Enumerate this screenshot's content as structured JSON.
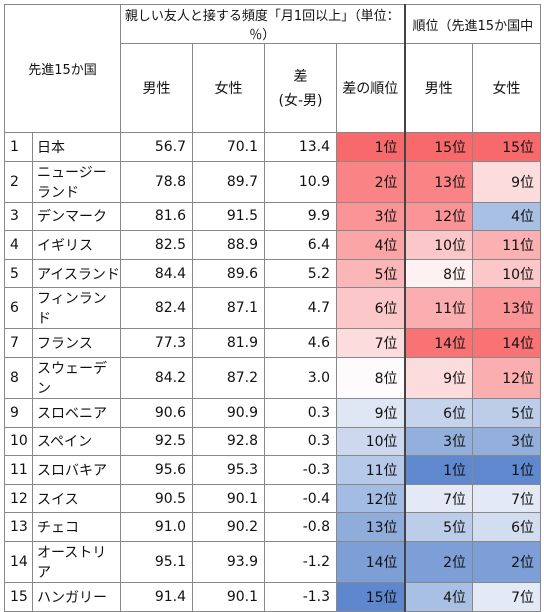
{
  "header": {
    "corner": "先進15か国",
    "group_freq": "親しい友人と接する頻度「月1回以上」（単位：％）",
    "group_rank": "順位（先進15か国中",
    "col_male": "男性",
    "col_female": "女性",
    "col_diff": "差",
    "col_diff_sub": "(女-男)",
    "col_diff_rank": "差の順位",
    "col_rank_male": "男性",
    "col_rank_female": "女性"
  },
  "rows": [
    {
      "no": "1",
      "country": "日本",
      "male": "56.7",
      "female": "70.1",
      "diff": "13.4",
      "diff_rank": "1位",
      "rank_m": "15位",
      "rank_f": "15位",
      "c_diff": "#f8696b",
      "c_m": "#f8696b",
      "c_f": "#f8696b"
    },
    {
      "no": "2",
      "country": "ニュージーランド",
      "male": "78.8",
      "female": "89.7",
      "diff": "10.9",
      "diff_rank": "2位",
      "rank_m": "13位",
      "rank_f": "9位",
      "c_diff": "#f98385",
      "c_m": "#f98385",
      "c_f": "#fddcdd"
    },
    {
      "no": "3",
      "country": "デンマーク",
      "male": "81.6",
      "female": "91.5",
      "diff": "9.9",
      "diff_rank": "3位",
      "rank_m": "12位",
      "rank_f": "4位",
      "c_diff": "#fa9496",
      "c_m": "#fa9496",
      "c_f": "#a8c0e4"
    },
    {
      "no": "4",
      "country": "イギリス",
      "male": "82.5",
      "female": "88.9",
      "diff": "6.4",
      "diff_rank": "4位",
      "rank_m": "10位",
      "rank_f": "11位",
      "c_diff": "#fba5a6",
      "c_m": "#fcc7c8",
      "c_f": "#fbb1b2"
    },
    {
      "no": "5",
      "country": "アイスランド",
      "male": "84.4",
      "female": "89.6",
      "diff": "5.2",
      "diff_rank": "5位",
      "rank_m": "8位",
      "rank_f": "10位",
      "c_diff": "#fbb6b7",
      "c_m": "#fdf1f1",
      "c_f": "#fcc7c8"
    },
    {
      "no": "6",
      "country": "フィンランド",
      "male": "82.4",
      "female": "87.1",
      "diff": "4.7",
      "diff_rank": "6位",
      "rank_m": "11位",
      "rank_f": "13位",
      "c_diff": "#fcc7c8",
      "c_m": "#fbaeaf",
      "c_f": "#fa9496"
    },
    {
      "no": "7",
      "country": "フランス",
      "male": "77.3",
      "female": "81.9",
      "diff": "4.6",
      "diff_rank": "7位",
      "rank_m": "14位",
      "rank_f": "14位",
      "c_diff": "#fddcdd",
      "c_m": "#f97375",
      "c_f": "#f97375"
    },
    {
      "no": "8",
      "country": "スウェーデン",
      "male": "84.2",
      "female": "87.2",
      "diff": "3.0",
      "diff_rank": "8位",
      "rank_m": "9位",
      "rank_f": "12位",
      "c_diff": "#fdfbfc",
      "c_m": "#fddcdd",
      "c_f": "#fbaeaf"
    },
    {
      "no": "9",
      "country": "スロベニア",
      "male": "90.6",
      "female": "90.9",
      "diff": "0.3",
      "diff_rank": "9位",
      "rank_m": "6位",
      "rank_f": "5位",
      "c_diff": "#dfe6f4",
      "c_m": "#c5d3ec",
      "c_f": "#bdcde9"
    },
    {
      "no": "10",
      "country": "スペイン",
      "male": "92.5",
      "female": "92.8",
      "diff": "0.3",
      "diff_rank": "10位",
      "rank_m": "3位",
      "rank_f": "3位",
      "c_diff": "#cdd8ee",
      "c_m": "#93b0dc",
      "c_f": "#93b0dc"
    },
    {
      "no": "11",
      "country": "スロバキア",
      "male": "95.6",
      "female": "95.3",
      "diff": "-0.3",
      "diff_rank": "11位",
      "rank_m": "1位",
      "rank_f": "1位",
      "c_diff": "#b7c9e8",
      "c_m": "#6088cf",
      "c_f": "#6088cf"
    },
    {
      "no": "12",
      "country": "スイス",
      "male": "90.5",
      "female": "90.1",
      "diff": "-0.4",
      "diff_rank": "12位",
      "rank_m": "7位",
      "rank_f": "7位",
      "c_diff": "#a3bce3",
      "c_m": "#e3e9f5",
      "c_f": "#e3e9f5"
    },
    {
      "no": "13",
      "country": "チェコ",
      "male": "91.0",
      "female": "90.2",
      "diff": "-0.8",
      "diff_rank": "13位",
      "rank_m": "5位",
      "rank_f": "6位",
      "c_diff": "#90acdb",
      "c_m": "#bccde9",
      "c_f": "#d3ddf0"
    },
    {
      "no": "14",
      "country": "オーストリア",
      "male": "95.1",
      "female": "93.9",
      "diff": "-1.2",
      "diff_rank": "14位",
      "rank_m": "2位",
      "rank_f": "2位",
      "c_diff": "#7e9fd6",
      "c_m": "#7d9ed6",
      "c_f": "#7d9ed6"
    },
    {
      "no": "15",
      "country": "ハンガリー",
      "male": "91.4",
      "female": "90.1",
      "diff": "-1.3",
      "diff_rank": "15位",
      "rank_m": "4位",
      "rank_f": "7位",
      "c_diff": "#5e87cf",
      "c_m": "#a8c0e4",
      "c_f": "#e3e9f5"
    }
  ]
}
